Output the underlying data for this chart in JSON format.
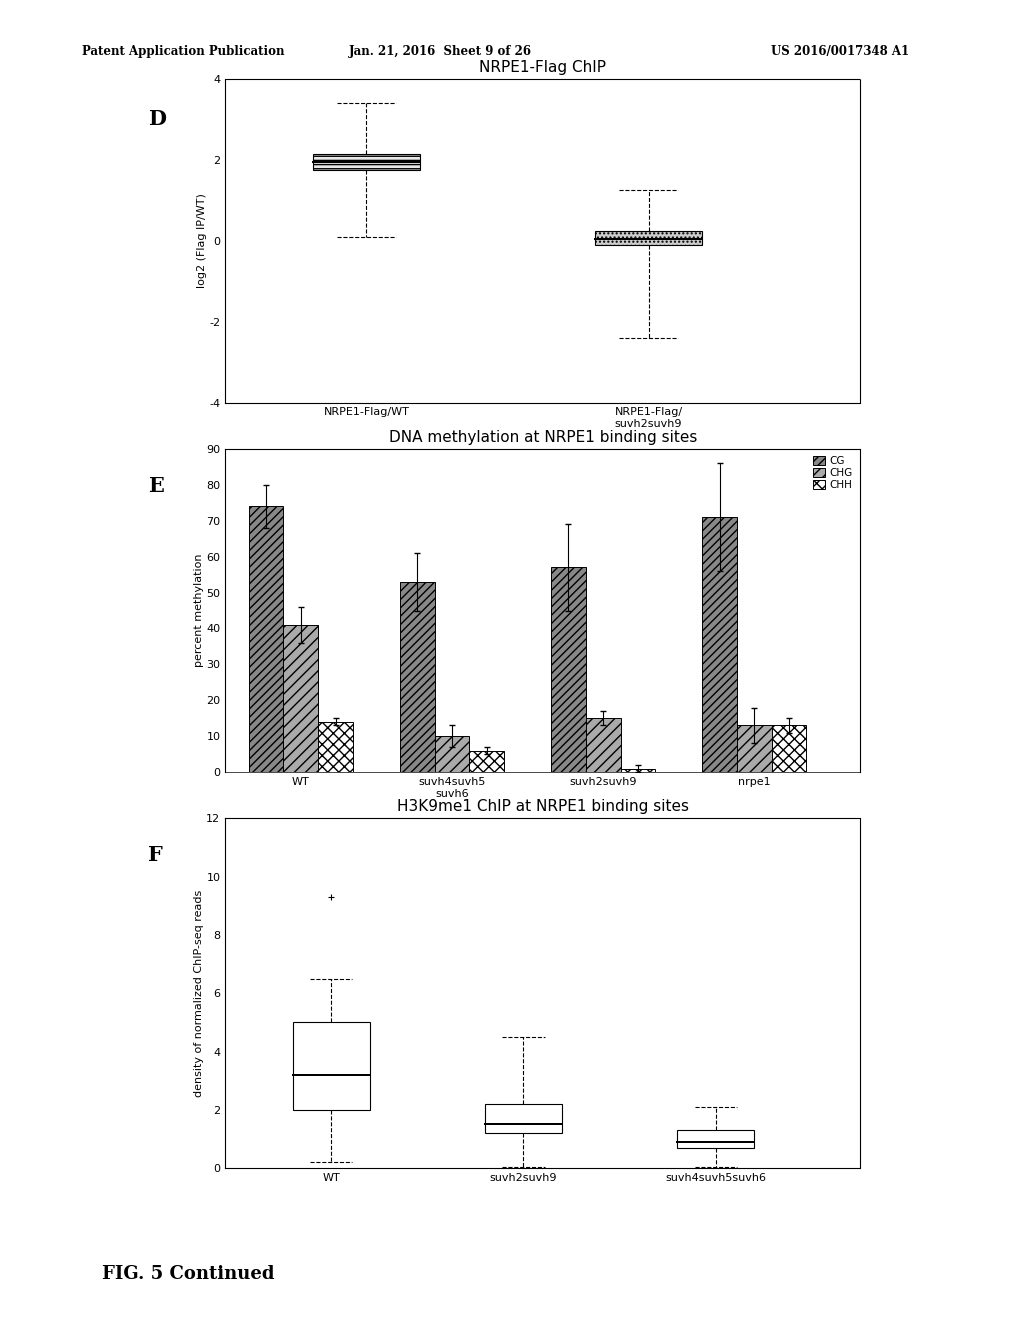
{
  "header_left": "Patent Application Publication",
  "header_mid": "Jan. 21, 2016  Sheet 9 of 26",
  "header_right": "US 2016/0017348 A1",
  "footer_text": "FIG. 5 Continued",
  "panel_d": {
    "title": "NRPE1-Flag ChIP",
    "label": "D",
    "ylabel": "log2 (Flag IP/WT)",
    "ylim": [
      -4,
      4
    ],
    "yticks": [
      -4,
      -2,
      0,
      2,
      4
    ],
    "box1": {
      "whisker_low": 0.1,
      "q1": 1.75,
      "median": 1.95,
      "q3": 2.15,
      "whisker_high": 3.4,
      "label": "NRPE1-Flag/WT"
    },
    "box2": {
      "whisker_low": -2.4,
      "q1": -0.1,
      "median": 0.05,
      "q3": 0.25,
      "whisker_high": 1.25,
      "label": "NRPE1-Flag/\nsuvh2suvh9"
    }
  },
  "panel_e": {
    "title": "DNA methylation at NRPE1 binding sites",
    "label": "E",
    "ylabel": "percent methylation",
    "ylim": [
      0,
      90
    ],
    "yticks": [
      0,
      10,
      20,
      30,
      40,
      50,
      60,
      70,
      80,
      90
    ],
    "categories": [
      "WT",
      "suvh4suvh5\nsuvh6",
      "suvh2suvh9",
      "nrpe1"
    ],
    "cg_values": [
      74,
      53,
      57,
      71
    ],
    "chg_values": [
      41,
      10,
      15,
      13
    ],
    "chh_values": [
      14,
      6,
      1,
      13
    ],
    "cg_errors": [
      6,
      8,
      12,
      15
    ],
    "chg_errors": [
      5,
      3,
      2,
      5
    ],
    "chh_errors": [
      1,
      1,
      1,
      2
    ],
    "legend_labels": [
      "CG",
      "CHG",
      "CHH"
    ]
  },
  "panel_f": {
    "title": "H3K9me1 ChIP at NRPE1 binding sites",
    "label": "F",
    "ylabel": "density of normalized ChIP-seq reads",
    "ylim": [
      0,
      12
    ],
    "yticks": [
      0,
      2,
      4,
      6,
      8,
      10,
      12
    ],
    "box1": {
      "whisker_low": 0.2,
      "q1": 2.0,
      "median": 3.2,
      "q3": 5.0,
      "whisker_high": 6.5,
      "fliers_high": [
        9.3
      ],
      "fliers_low": [],
      "label": "WT"
    },
    "box2": {
      "whisker_low": 0.05,
      "q1": 1.2,
      "median": 1.5,
      "q3": 2.2,
      "whisker_high": 4.5,
      "fliers_high": [],
      "fliers_low": [],
      "label": "suvh2suvh9"
    },
    "box3": {
      "whisker_low": 0.05,
      "q1": 0.7,
      "median": 0.9,
      "q3": 1.3,
      "whisker_high": 2.1,
      "fliers_high": [],
      "fliers_low": [],
      "label": "suvh4suvh5suvh6"
    }
  },
  "bg_color": "#ffffff"
}
